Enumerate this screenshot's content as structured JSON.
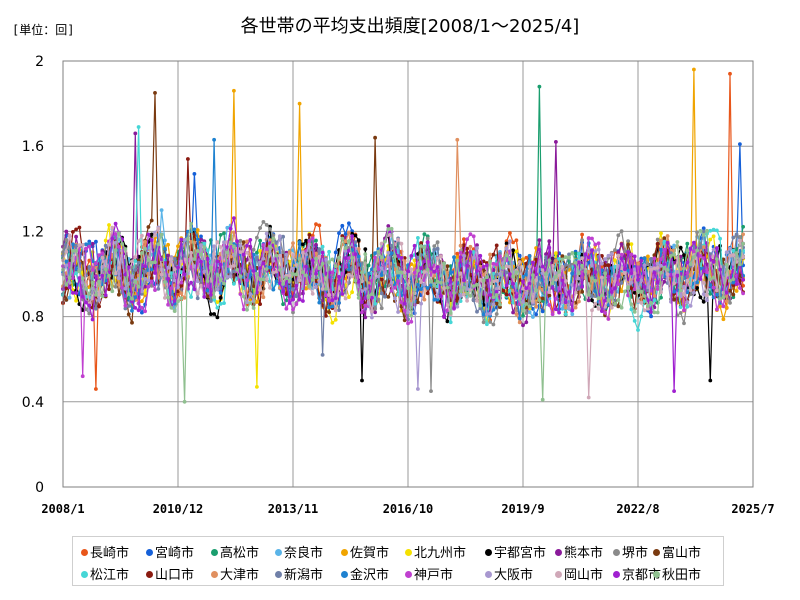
{
  "chart_data": {
    "type": "line",
    "title": "各世帯の平均支出頻度[2008/1～2025/4]",
    "unit_label": "[単位：回]",
    "x_range": [
      "2008/1",
      "2025/7"
    ],
    "x_ticks": [
      "2008/1",
      "2010/12",
      "2013/11",
      "2016/10",
      "2019/9",
      "2022/8",
      "2025/7"
    ],
    "ylim": [
      0,
      2
    ],
    "y_ticks": [
      "0",
      "0.4",
      "0.8",
      "1.2",
      "1.6",
      "2"
    ],
    "grid": true,
    "legend_position": "bottom",
    "series": [
      {
        "name": "長崎市",
        "color": "#e8561a",
        "seed": 11,
        "notable": [
          [
            2024.9,
            1.94
          ],
          [
            2008.8,
            0.46
          ]
        ]
      },
      {
        "name": "宮崎市",
        "color": "#1560d8",
        "seed": 23,
        "notable": [
          [
            2011.3,
            1.47
          ],
          [
            2025.2,
            1.61
          ]
        ]
      },
      {
        "name": "高松市",
        "color": "#1a9e6e",
        "seed": 37,
        "notable": [
          [
            2020.1,
            1.88
          ]
        ]
      },
      {
        "name": "奈良市",
        "color": "#5ab4e8",
        "seed": 41,
        "notable": [
          [
            2010.5,
            1.3
          ]
        ]
      },
      {
        "name": "佐賀市",
        "color": "#f0a400",
        "seed": 53,
        "notable": [
          [
            2024.0,
            1.96
          ],
          [
            2012.3,
            1.86
          ],
          [
            2014.0,
            1.8
          ]
        ]
      },
      {
        "name": "北九州市",
        "color": "#f5e100",
        "seed": 67,
        "notable": [
          [
            2012.9,
            0.47
          ]
        ]
      },
      {
        "name": "宇都宮市",
        "color": "#000000",
        "seed": 71,
        "notable": [
          [
            2024.4,
            0.5
          ],
          [
            2015.6,
            0.5
          ]
        ]
      },
      {
        "name": "熊本市",
        "color": "#8a1a9a",
        "seed": 83,
        "notable": [
          [
            2009.8,
            1.66
          ],
          [
            2020.5,
            1.62
          ]
        ]
      },
      {
        "name": "堺市",
        "color": "#8a8a8a",
        "seed": 97,
        "notable": [
          [
            2017.3,
            0.45
          ]
        ]
      },
      {
        "name": "富山市",
        "color": "#7a3a10",
        "seed": 101,
        "notable": [
          [
            2010.3,
            1.85
          ],
          [
            2015.9,
            1.64
          ]
        ]
      },
      {
        "name": "松江市",
        "color": "#46d6d6",
        "seed": 113,
        "notable": [
          [
            2009.9,
            1.69
          ]
        ]
      },
      {
        "name": "山口市",
        "color": "#8a1a10",
        "seed": 127,
        "notable": [
          [
            2011.2,
            1.54
          ]
        ]
      },
      {
        "name": "大津市",
        "color": "#e09060",
        "seed": 131,
        "notable": [
          [
            2018.0,
            1.63
          ]
        ]
      },
      {
        "name": "新潟市",
        "color": "#7080a8",
        "seed": 139,
        "notable": [
          [
            2014.6,
            0.62
          ]
        ]
      },
      {
        "name": "金沢市",
        "color": "#1f82d0",
        "seed": 149,
        "notable": [
          [
            2011.8,
            1.63
          ]
        ]
      },
      {
        "name": "神戸市",
        "color": "#c040d0",
        "seed": 151,
        "notable": [
          [
            2008.5,
            0.52
          ]
        ]
      },
      {
        "name": "大阪市",
        "color": "#a898d0",
        "seed": 163,
        "notable": [
          [
            2017.0,
            0.46
          ]
        ]
      },
      {
        "name": "岡山市",
        "color": "#d0a8b8",
        "seed": 167,
        "notable": [
          [
            2021.3,
            0.42
          ]
        ]
      },
      {
        "name": "京都市",
        "color": "#a020d0",
        "seed": 173,
        "notable": [
          [
            2023.5,
            0.45
          ]
        ]
      },
      {
        "name": "秋田市",
        "color": "#90c090",
        "seed": 179,
        "notable": [
          [
            2011.1,
            0.4
          ],
          [
            2020.2,
            0.41
          ]
        ]
      }
    ]
  }
}
